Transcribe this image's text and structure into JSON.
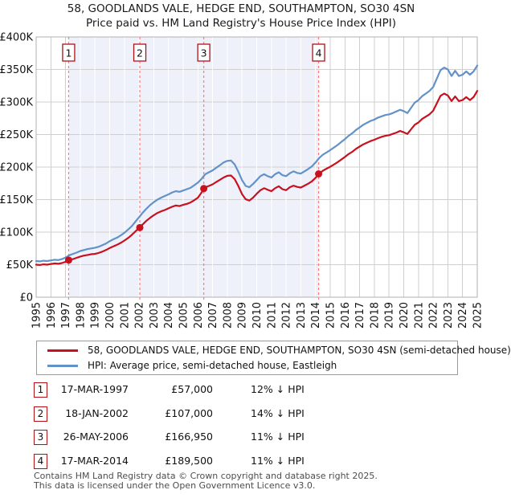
{
  "title": {
    "line1": "58, GOODLANDS VALE, HEDGE END, SOUTHAMPTON, SO30 4SN",
    "line2": "Price paid vs. HM Land Registry's House Price Index (HPI)"
  },
  "legend": {
    "items": [
      {
        "label": "58, GOODLANDS VALE, HEDGE END, SOUTHAMPTON, SO30 4SN (semi-detached house)",
        "color": "#c8111e"
      },
      {
        "label": "HPI: Average price, semi-detached house, Eastleigh",
        "color": "#6292c8"
      }
    ]
  },
  "sales_table": {
    "rows": [
      {
        "num": "1",
        "date": "17-MAR-1997",
        "price": "£57,000",
        "vs_hpi": "12% ↓ HPI"
      },
      {
        "num": "2",
        "date": "18-JAN-2002",
        "price": "£107,000",
        "vs_hpi": "14% ↓ HPI"
      },
      {
        "num": "3",
        "date": "26-MAY-2006",
        "price": "£166,950",
        "vs_hpi": "11% ↓ HPI"
      },
      {
        "num": "4",
        "date": "17-MAR-2014",
        "price": "£189,500",
        "vs_hpi": "11% ↓ HPI"
      }
    ]
  },
  "footer": {
    "line1": "Contains HM Land Registry data © Crown copyright and database right 2025.",
    "line2": "This data is licensed under the Open Government Licence v3.0."
  },
  "chart_data": {
    "type": "line",
    "x_axis": {
      "min": 1995,
      "max": 2025,
      "years": [
        1995,
        1996,
        1997,
        1998,
        1999,
        2000,
        2001,
        2002,
        2003,
        2004,
        2005,
        2006,
        2007,
        2008,
        2009,
        2010,
        2011,
        2012,
        2013,
        2014,
        2015,
        2016,
        2017,
        2018,
        2019,
        2020,
        2021,
        2022,
        2023,
        2024,
        2025
      ]
    },
    "y_axis": {
      "min": 0,
      "max": 400,
      "unit": "£K",
      "ticks": [
        {
          "v": 0,
          "label": "£0"
        },
        {
          "v": 50,
          "label": "£50K"
        },
        {
          "v": 100,
          "label": "£100K"
        },
        {
          "v": 150,
          "label": "£150K"
        },
        {
          "v": 200,
          "label": "£200K"
        },
        {
          "v": 250,
          "label": "£250K"
        },
        {
          "v": 300,
          "label": "£300K"
        },
        {
          "v": 350,
          "label": "£350K"
        },
        {
          "v": 400,
          "label": "£400K"
        }
      ]
    },
    "grid_color": "#cfcfcf",
    "grid_color_in_shade": "#ffffff",
    "frame_color": "#b0b0b0",
    "shaded_region": {
      "from_year": 1997.21,
      "to_year": 2014.21,
      "color": "#eef1fa"
    },
    "sale_marker_color": "#c8111e",
    "sale_line_color": "#f57e7e",
    "sale_box_border": "#b01116",
    "sales": [
      {
        "num": "1",
        "year": 1997.21,
        "value": 57
      },
      {
        "num": "2",
        "year": 2002.05,
        "value": 107
      },
      {
        "num": "3",
        "year": 2006.4,
        "value": 166.95
      },
      {
        "num": "4",
        "year": 2014.21,
        "value": 189.5
      }
    ],
    "series": [
      {
        "name": "price-paid",
        "color": "#c8111e",
        "width": 2.2,
        "points": [
          [
            1995.0,
            50
          ],
          [
            1995.25,
            49.5
          ],
          [
            1995.5,
            50.5
          ],
          [
            1995.75,
            50
          ],
          [
            1996.0,
            51
          ],
          [
            1996.25,
            52
          ],
          [
            1996.5,
            51.5
          ],
          [
            1996.75,
            52.5
          ],
          [
            1997.0,
            54.5
          ],
          [
            1997.25,
            57
          ],
          [
            1997.5,
            58.5
          ],
          [
            1997.75,
            60.5
          ],
          [
            1998.0,
            62.5
          ],
          [
            1998.25,
            64
          ],
          [
            1998.5,
            65
          ],
          [
            1998.75,
            66
          ],
          [
            1999.0,
            66.5
          ],
          [
            1999.25,
            68
          ],
          [
            1999.5,
            70
          ],
          [
            1999.75,
            72.5
          ],
          [
            2000.0,
            75.5
          ],
          [
            2000.25,
            78
          ],
          [
            2000.5,
            80.5
          ],
          [
            2000.75,
            83.5
          ],
          [
            2001.0,
            87
          ],
          [
            2001.25,
            91
          ],
          [
            2001.5,
            95.5
          ],
          [
            2001.75,
            101
          ],
          [
            2002.0,
            106.5
          ],
          [
            2002.25,
            112
          ],
          [
            2002.5,
            117.5
          ],
          [
            2002.75,
            122
          ],
          [
            2003.0,
            126
          ],
          [
            2003.25,
            129.5
          ],
          [
            2003.5,
            132
          ],
          [
            2003.75,
            134
          ],
          [
            2004.0,
            136.5
          ],
          [
            2004.25,
            139
          ],
          [
            2004.5,
            141
          ],
          [
            2004.75,
            140
          ],
          [
            2005.0,
            142
          ],
          [
            2005.25,
            143.5
          ],
          [
            2005.5,
            145.5
          ],
          [
            2005.75,
            149
          ],
          [
            2006.0,
            153
          ],
          [
            2006.25,
            161
          ],
          [
            2006.5,
            169
          ],
          [
            2006.75,
            171
          ],
          [
            2007.0,
            173.5
          ],
          [
            2007.25,
            177
          ],
          [
            2007.5,
            180.5
          ],
          [
            2007.75,
            184
          ],
          [
            2008.0,
            186.5
          ],
          [
            2008.25,
            187
          ],
          [
            2008.5,
            181.5
          ],
          [
            2008.75,
            171
          ],
          [
            2009.0,
            158.5
          ],
          [
            2009.25,
            150.5
          ],
          [
            2009.5,
            148.5
          ],
          [
            2009.75,
            153
          ],
          [
            2010.0,
            159
          ],
          [
            2010.25,
            164.5
          ],
          [
            2010.5,
            167.5
          ],
          [
            2010.75,
            165
          ],
          [
            2011.0,
            163
          ],
          [
            2011.25,
            167.5
          ],
          [
            2011.5,
            170.5
          ],
          [
            2011.75,
            166
          ],
          [
            2012.0,
            164.5
          ],
          [
            2012.25,
            169
          ],
          [
            2012.5,
            171.5
          ],
          [
            2012.75,
            169.5
          ],
          [
            2013.0,
            168.5
          ],
          [
            2013.25,
            171.5
          ],
          [
            2013.5,
            174.5
          ],
          [
            2013.75,
            178
          ],
          [
            2014.0,
            183.5
          ],
          [
            2014.25,
            190
          ],
          [
            2014.5,
            194.5
          ],
          [
            2014.75,
            197.5
          ],
          [
            2015.0,
            200.5
          ],
          [
            2015.25,
            204
          ],
          [
            2015.5,
            207.5
          ],
          [
            2015.75,
            211.5
          ],
          [
            2016.0,
            215.5
          ],
          [
            2016.25,
            220
          ],
          [
            2016.5,
            223.5
          ],
          [
            2016.75,
            228
          ],
          [
            2017.0,
            231.5
          ],
          [
            2017.25,
            235
          ],
          [
            2017.5,
            237.5
          ],
          [
            2017.75,
            240
          ],
          [
            2018.0,
            242
          ],
          [
            2018.25,
            244.5
          ],
          [
            2018.5,
            246.5
          ],
          [
            2018.75,
            248
          ],
          [
            2019.0,
            249
          ],
          [
            2019.25,
            251
          ],
          [
            2019.5,
            253
          ],
          [
            2019.75,
            255.5
          ],
          [
            2020.0,
            253.5
          ],
          [
            2020.25,
            251
          ],
          [
            2020.5,
            258
          ],
          [
            2020.75,
            265
          ],
          [
            2021.0,
            268.5
          ],
          [
            2021.25,
            274
          ],
          [
            2021.5,
            277.5
          ],
          [
            2021.75,
            281
          ],
          [
            2022.0,
            286.5
          ],
          [
            2022.25,
            298
          ],
          [
            2022.5,
            309.5
          ],
          [
            2022.75,
            313
          ],
          [
            2023.0,
            310
          ],
          [
            2023.25,
            301.5
          ],
          [
            2023.5,
            308.5
          ],
          [
            2023.75,
            301.5
          ],
          [
            2024.0,
            303
          ],
          [
            2024.25,
            307.5
          ],
          [
            2024.5,
            303
          ],
          [
            2024.75,
            307.5
          ],
          [
            2025.0,
            317
          ]
        ]
      },
      {
        "name": "hpi",
        "color": "#6292c8",
        "width": 2.2,
        "points": [
          [
            1995.0,
            55.5
          ],
          [
            1995.25,
            55
          ],
          [
            1995.5,
            56
          ],
          [
            1995.75,
            55.5
          ],
          [
            1996.0,
            56.5
          ],
          [
            1996.25,
            57.5
          ],
          [
            1996.5,
            57
          ],
          [
            1996.75,
            58.5
          ],
          [
            1997.0,
            61
          ],
          [
            1997.25,
            64.5
          ],
          [
            1997.5,
            66.5
          ],
          [
            1997.75,
            68.5
          ],
          [
            1998.0,
            71
          ],
          [
            1998.25,
            72.5
          ],
          [
            1998.5,
            74
          ],
          [
            1998.75,
            75
          ],
          [
            1999.0,
            76
          ],
          [
            1999.25,
            77.5
          ],
          [
            1999.5,
            80
          ],
          [
            1999.75,
            82.5
          ],
          [
            2000.0,
            86
          ],
          [
            2000.25,
            89
          ],
          [
            2000.5,
            91.5
          ],
          [
            2000.75,
            95
          ],
          [
            2001.0,
            99
          ],
          [
            2001.25,
            104
          ],
          [
            2001.5,
            109
          ],
          [
            2001.75,
            116
          ],
          [
            2002.0,
            123
          ],
          [
            2002.25,
            130
          ],
          [
            2002.5,
            136
          ],
          [
            2002.75,
            141.5
          ],
          [
            2003.0,
            146
          ],
          [
            2003.25,
            150
          ],
          [
            2003.5,
            153
          ],
          [
            2003.75,
            155.5
          ],
          [
            2004.0,
            158
          ],
          [
            2004.25,
            161
          ],
          [
            2004.5,
            163
          ],
          [
            2004.75,
            162
          ],
          [
            2005.0,
            164
          ],
          [
            2005.25,
            166
          ],
          [
            2005.5,
            168
          ],
          [
            2005.75,
            172
          ],
          [
            2006.0,
            176
          ],
          [
            2006.25,
            182
          ],
          [
            2006.5,
            189
          ],
          [
            2006.75,
            192
          ],
          [
            2007.0,
            195
          ],
          [
            2007.25,
            199
          ],
          [
            2007.5,
            203
          ],
          [
            2007.75,
            207
          ],
          [
            2008.0,
            209.5
          ],
          [
            2008.25,
            210
          ],
          [
            2008.5,
            204
          ],
          [
            2008.75,
            193
          ],
          [
            2009.0,
            180
          ],
          [
            2009.25,
            171
          ],
          [
            2009.5,
            169
          ],
          [
            2009.75,
            174
          ],
          [
            2010.0,
            180
          ],
          [
            2010.25,
            186
          ],
          [
            2010.5,
            189
          ],
          [
            2010.75,
            186
          ],
          [
            2011.0,
            184
          ],
          [
            2011.25,
            189
          ],
          [
            2011.5,
            192
          ],
          [
            2011.75,
            187.5
          ],
          [
            2012.0,
            186
          ],
          [
            2012.25,
            190.5
          ],
          [
            2012.5,
            193.5
          ],
          [
            2012.75,
            191
          ],
          [
            2013.0,
            190
          ],
          [
            2013.25,
            193.5
          ],
          [
            2013.5,
            197
          ],
          [
            2013.75,
            201
          ],
          [
            2014.0,
            207
          ],
          [
            2014.25,
            214
          ],
          [
            2014.5,
            219
          ],
          [
            2014.75,
            222.5
          ],
          [
            2015.0,
            226
          ],
          [
            2015.25,
            230
          ],
          [
            2015.5,
            234
          ],
          [
            2015.75,
            238.5
          ],
          [
            2016.0,
            243
          ],
          [
            2016.25,
            248
          ],
          [
            2016.5,
            252
          ],
          [
            2016.75,
            257
          ],
          [
            2017.0,
            261
          ],
          [
            2017.25,
            265
          ],
          [
            2017.5,
            268
          ],
          [
            2017.75,
            271
          ],
          [
            2018.0,
            273
          ],
          [
            2018.25,
            276
          ],
          [
            2018.5,
            278
          ],
          [
            2018.75,
            280
          ],
          [
            2019.0,
            281
          ],
          [
            2019.25,
            283
          ],
          [
            2019.5,
            285.5
          ],
          [
            2019.75,
            288
          ],
          [
            2020.0,
            286
          ],
          [
            2020.25,
            283
          ],
          [
            2020.5,
            291
          ],
          [
            2020.75,
            299
          ],
          [
            2021.0,
            303
          ],
          [
            2021.25,
            309
          ],
          [
            2021.5,
            313
          ],
          [
            2021.75,
            317
          ],
          [
            2022.0,
            323
          ],
          [
            2022.25,
            336
          ],
          [
            2022.5,
            349
          ],
          [
            2022.75,
            353
          ],
          [
            2023.0,
            350
          ],
          [
            2023.25,
            340
          ],
          [
            2023.5,
            348
          ],
          [
            2023.75,
            340
          ],
          [
            2024.0,
            342
          ],
          [
            2024.25,
            347
          ],
          [
            2024.5,
            342
          ],
          [
            2024.75,
            347
          ],
          [
            2025.0,
            356
          ]
        ]
      }
    ]
  }
}
